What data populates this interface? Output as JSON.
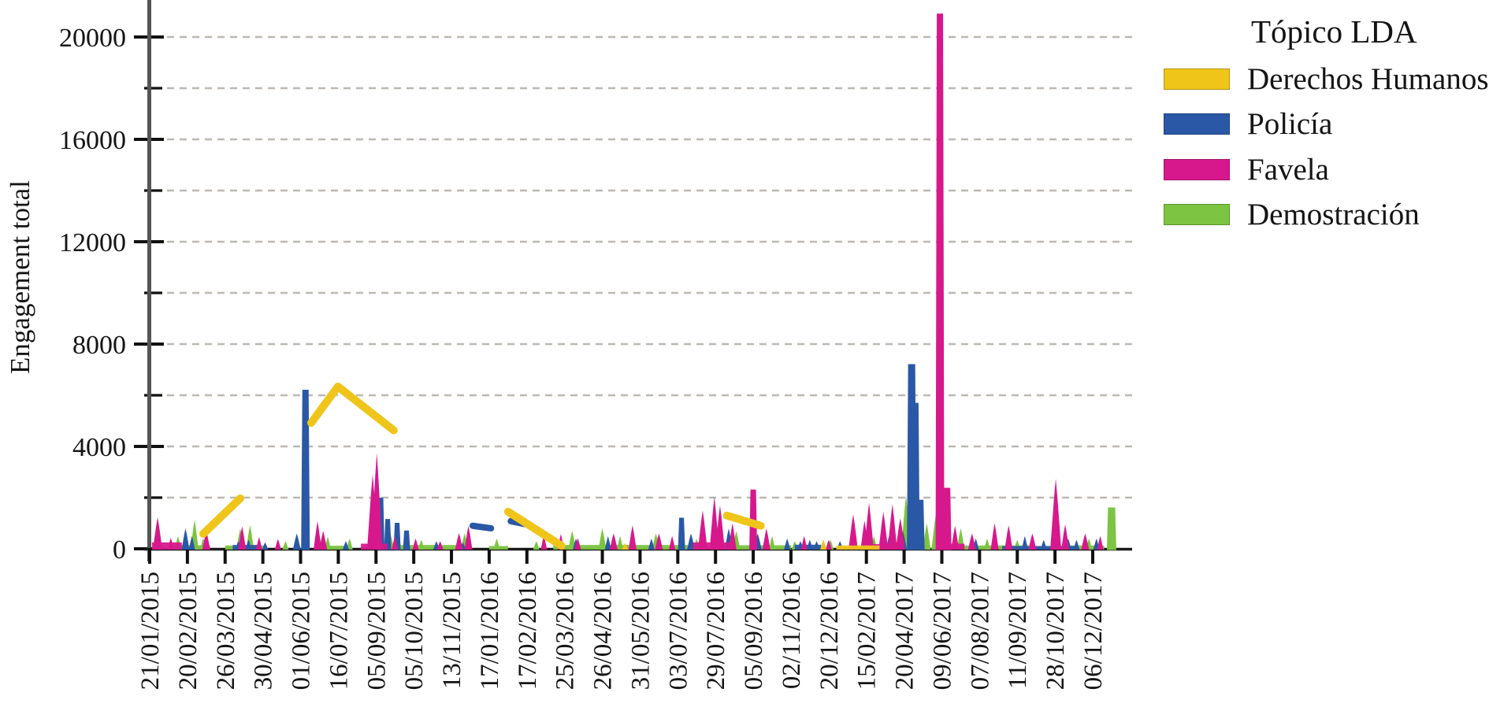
{
  "chart_data": {
    "type": "line",
    "title": "",
    "xlabel": "",
    "ylabel": "Engagement total",
    "ylim": [
      0,
      21000
    ],
    "grid": "dashed-horizontal",
    "x_axis_note": "x values of data are in tick-index units: 0 = first tick (21/01/2015), 25 = last tick (06/12/2017)",
    "ytick_labels": [
      "0",
      "4000",
      "8000",
      "12000",
      "16000",
      "20000"
    ],
    "ytick_minor_step": 2000,
    "x_tick_labels": [
      "21/01/2015",
      "20/02/2015",
      "26/03/2015",
      "30/04/2015",
      "01/06/2015",
      "16/07/2015",
      "05/09/2015",
      "05/10/2015",
      "13/11/2015",
      "17/01/2016",
      "17/02/2016",
      "25/03/2016",
      "26/04/2016",
      "31/05/2016",
      "03/07/2016",
      "29/07/2016",
      "05/09/2016",
      "02/11/2016",
      "20/12/2016",
      "15/02/2017",
      "20/04/2017",
      "09/06/2017",
      "07/08/2017",
      "11/09/2017",
      "28/10/2017",
      "06/12/2017"
    ],
    "legend": {
      "title": "Tópico LDA",
      "position": "top-right",
      "entries": [
        {
          "name": "Derechos Humanos",
          "color": "#EFC51A"
        },
        {
          "name": "Policía",
          "color": "#2A58A6"
        },
        {
          "name": "Favela",
          "color": "#D7188C"
        },
        {
          "name": "Demostración",
          "color": "#7CC442"
        }
      ]
    },
    "series": [
      {
        "name": "Derechos Humanos",
        "color": "#EFC51A",
        "lines": [
          [
            [
              1.42,
              585
            ],
            [
              2.4,
              1970
            ]
          ],
          [
            [
              4.28,
              4920
            ],
            [
              4.99,
              6340
            ],
            [
              6.47,
              4630
            ]
          ],
          [
            [
              9.5,
              1450
            ],
            [
              10.92,
              120
            ]
          ],
          [
            [
              15.3,
              1300
            ],
            [
              16.2,
              900
            ]
          ]
        ],
        "bars": [],
        "spikes": [
          [
            17.86,
            370
          ],
          [
            12.6,
            220
          ]
        ],
        "runs": [
          [
            18.2,
            19.35,
            130
          ]
        ]
      },
      {
        "name": "Policía",
        "color": "#2A58A6",
        "lines": [
          [
            [
              8.56,
              900
            ],
            [
              9.05,
              800
            ]
          ],
          [
            [
              9.57,
              1080
            ],
            [
              10.17,
              900
            ]
          ]
        ],
        "bars": [
          [
            4.13,
            6200,
            10
          ],
          [
            6.12,
            1980,
            9
          ],
          [
            6.31,
            1150,
            8
          ],
          [
            6.56,
            1000,
            8
          ],
          [
            6.81,
            700,
            8
          ],
          [
            14.1,
            1200,
            8
          ],
          [
            20.2,
            7200,
            11
          ],
          [
            20.33,
            5690,
            7
          ],
          [
            20.45,
            1900,
            8
          ]
        ],
        "spikes": [
          [
            0.95,
            800
          ],
          [
            1.12,
            500
          ],
          [
            2.35,
            300
          ],
          [
            2.62,
            350
          ],
          [
            3.06,
            250
          ],
          [
            3.9,
            600
          ],
          [
            5.2,
            300
          ],
          [
            7.6,
            300
          ],
          [
            8.3,
            250
          ],
          [
            11.3,
            400
          ],
          [
            12.15,
            500
          ],
          [
            13.3,
            400
          ],
          [
            14.35,
            600
          ],
          [
            15.35,
            800
          ],
          [
            16.12,
            600
          ],
          [
            16.9,
            400
          ],
          [
            17.25,
            300
          ],
          [
            17.5,
            350
          ],
          [
            17.68,
            300
          ],
          [
            18.3,
            300
          ],
          [
            19.6,
            500
          ],
          [
            19.97,
            700
          ],
          [
            21.9,
            400
          ],
          [
            22.8,
            400
          ],
          [
            23.2,
            500
          ],
          [
            23.7,
            350
          ],
          [
            24.35,
            400
          ],
          [
            24.57,
            350
          ],
          [
            25.1,
            400
          ]
        ],
        "runs": [
          [
            2.2,
            2.9,
            150
          ],
          [
            17.1,
            17.8,
            160
          ],
          [
            22.6,
            24.6,
            110
          ]
        ]
      },
      {
        "name": "Favela",
        "color": "#D7188C",
        "lines": [],
        "bars": [
          [
            16.0,
            2300,
            9
          ],
          [
            20.95,
            20900,
            10
          ],
          [
            21.14,
            2370,
            10
          ]
        ],
        "spikes": [
          [
            0.21,
            1230
          ],
          [
            0.56,
            430
          ],
          [
            1.5,
            700
          ],
          [
            2.45,
            880
          ],
          [
            2.9,
            460
          ],
          [
            3.4,
            380
          ],
          [
            4.45,
            1080
          ],
          [
            4.6,
            700
          ],
          [
            5.91,
            2900
          ],
          [
            6.02,
            3760
          ],
          [
            6.5,
            500
          ],
          [
            7.05,
            400
          ],
          [
            7.7,
            300
          ],
          [
            8.2,
            615
          ],
          [
            8.45,
            900
          ],
          [
            10.45,
            520
          ],
          [
            10.9,
            580
          ],
          [
            11.35,
            420
          ],
          [
            12.3,
            600
          ],
          [
            12.8,
            920
          ],
          [
            13.5,
            600
          ],
          [
            13.85,
            500
          ],
          [
            14.66,
            1500
          ],
          [
            14.97,
            2050
          ],
          [
            15.12,
            1700
          ],
          [
            15.45,
            1000
          ],
          [
            16.35,
            800
          ],
          [
            17.35,
            500
          ],
          [
            18.0,
            350
          ],
          [
            18.65,
            1350
          ],
          [
            18.95,
            1100
          ],
          [
            19.07,
            1800
          ],
          [
            19.45,
            1450
          ],
          [
            19.69,
            1750
          ],
          [
            19.9,
            1200
          ],
          [
            21.35,
            900
          ],
          [
            21.8,
            600
          ],
          [
            22.4,
            1000
          ],
          [
            22.77,
            920
          ],
          [
            23.4,
            600
          ],
          [
            24.02,
            2740
          ],
          [
            24.27,
            950
          ],
          [
            24.8,
            600
          ],
          [
            25.2,
            500
          ]
        ],
        "runs": [
          [
            0.06,
            0.85,
            250
          ],
          [
            5.6,
            6.3,
            200
          ],
          [
            14.4,
            15.45,
            250
          ],
          [
            18.9,
            19.95,
            180
          ],
          [
            21.0,
            21.6,
            200
          ]
        ]
      },
      {
        "name": "Demostración",
        "color": "#7CC442",
        "lines": [],
        "bars": [
          [
            25.5,
            1600,
            11
          ]
        ],
        "spikes": [
          [
            0.75,
            500
          ],
          [
            1.19,
            1140
          ],
          [
            1.42,
            420
          ],
          [
            2.4,
            780
          ],
          [
            2.66,
            920
          ],
          [
            3.6,
            300
          ],
          [
            4.5,
            520
          ],
          [
            4.72,
            480
          ],
          [
            5.3,
            400
          ],
          [
            6.38,
            600
          ],
          [
            7.2,
            350
          ],
          [
            8.35,
            600
          ],
          [
            9.2,
            400
          ],
          [
            10.25,
            300
          ],
          [
            11.2,
            700
          ],
          [
            12.0,
            800
          ],
          [
            12.47,
            500
          ],
          [
            13.42,
            600
          ],
          [
            14.5,
            400
          ],
          [
            15.55,
            700
          ],
          [
            16.5,
            500
          ],
          [
            17.1,
            300
          ],
          [
            18.05,
            350
          ],
          [
            19.2,
            500
          ],
          [
            20.05,
            2100
          ],
          [
            20.6,
            1000
          ],
          [
            20.85,
            1450
          ],
          [
            21.5,
            800
          ],
          [
            22.2,
            400
          ],
          [
            23.0,
            350
          ],
          [
            24.0,
            300
          ],
          [
            24.9,
            400
          ]
        ],
        "runs": [
          [
            0.6,
            1.6,
            140
          ],
          [
            2.0,
            3.1,
            130
          ],
          [
            4.4,
            5.3,
            120
          ],
          [
            6.4,
            8.5,
            150
          ],
          [
            9.0,
            9.5,
            110
          ],
          [
            10.7,
            14.4,
            150
          ],
          [
            15.5,
            17.0,
            140
          ],
          [
            19.0,
            19.95,
            150
          ],
          [
            21.3,
            23.3,
            130
          ],
          [
            24.4,
            25.3,
            130
          ]
        ]
      }
    ]
  }
}
